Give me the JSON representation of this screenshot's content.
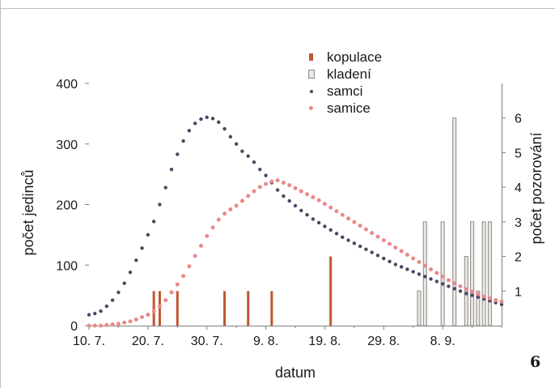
{
  "figure": {
    "number": "6"
  },
  "colors": {
    "frame": "#bfbfbf",
    "axis": "#7f7f7f",
    "text": "#1a1a1a",
    "kopulace": "#c0562e",
    "kladeni_fill": "#ebe8e4",
    "kladeni_stroke": "#8e8a86",
    "samci": "#4a4863",
    "samice": "#ea8a8a"
  },
  "legend": {
    "kopulace": "kopulace",
    "kladeni": "kladení",
    "samci": "samci",
    "samice": "samice"
  },
  "chart_data": {
    "type": "line",
    "xlabel": "datum",
    "ylabel": "počet jedinců",
    "y2label": "počet pozorování",
    "x_tick_labels": [
      "10. 7.",
      "20. 7.",
      "30. 7.",
      "9. 8.",
      "19. 8.",
      "29. 8.",
      "8. 9."
    ],
    "x_tick_days": [
      0,
      10,
      20,
      30,
      40,
      50,
      60
    ],
    "xlim": [
      0,
      70
    ],
    "ylim": [
      0,
      400
    ],
    "y_ticks": [
      0,
      100,
      200,
      300,
      400
    ],
    "y2lim": [
      0,
      7
    ],
    "y2_ticks": [
      1,
      2,
      3,
      4,
      5,
      6
    ],
    "grid": false,
    "legend_position": "top-center",
    "series": [
      {
        "name": "samci",
        "axis": "left",
        "style": "dots",
        "x": [
          0,
          1,
          2,
          3,
          4,
          5,
          6,
          7,
          8,
          9,
          10,
          11,
          12,
          13,
          14,
          15,
          16,
          17,
          18,
          19,
          20,
          21,
          22,
          23,
          24,
          25,
          26,
          27,
          28,
          29,
          30,
          31,
          32,
          33,
          34,
          35,
          36,
          37,
          38,
          39,
          40,
          41,
          42,
          43,
          44,
          45,
          46,
          47,
          48,
          49,
          50,
          51,
          52,
          53,
          54,
          55,
          56,
          57,
          58,
          59,
          60,
          61,
          62,
          63,
          64,
          65,
          66,
          67,
          68,
          69,
          70
        ],
        "values": [
          18,
          20,
          24,
          32,
          42,
          55,
          70,
          88,
          108,
          128,
          150,
          172,
          200,
          228,
          258,
          283,
          305,
          322,
          334,
          341,
          344,
          342,
          336,
          325,
          312,
          300,
          288,
          280,
          270,
          258,
          248,
          236,
          224,
          214,
          206,
          198,
          190,
          183,
          176,
          170,
          164,
          158,
          152,
          146,
          141,
          136,
          131,
          126,
          121,
          116,
          111,
          106,
          101,
          97,
          93,
          89,
          85,
          81,
          77,
          73,
          69,
          65,
          61,
          57,
          53,
          50,
          47,
          44,
          41,
          38,
          35
        ]
      },
      {
        "name": "samice",
        "axis": "left",
        "style": "dots",
        "x": [
          0,
          1,
          2,
          3,
          4,
          5,
          6,
          7,
          8,
          9,
          10,
          11,
          12,
          13,
          14,
          15,
          16,
          17,
          18,
          19,
          20,
          21,
          22,
          23,
          24,
          25,
          26,
          27,
          28,
          29,
          30,
          31,
          32,
          33,
          34,
          35,
          36,
          37,
          38,
          39,
          40,
          41,
          42,
          43,
          44,
          45,
          46,
          47,
          48,
          49,
          50,
          51,
          52,
          53,
          54,
          55,
          56,
          57,
          58,
          59,
          60,
          61,
          62,
          63,
          64,
          65,
          66,
          67,
          68,
          69,
          70
        ],
        "values": [
          0,
          0,
          0,
          1,
          2,
          3,
          5,
          7,
          10,
          14,
          18,
          24,
          32,
          42,
          55,
          68,
          82,
          98,
          115,
          132,
          148,
          162,
          175,
          185,
          192,
          198,
          206,
          214,
          222,
          229,
          234,
          238,
          240,
          236,
          232,
          227,
          222,
          217,
          212,
          207,
          201,
          195,
          189,
          183,
          177,
          171,
          165,
          159,
          153,
          147,
          141,
          135,
          129,
          123,
          117,
          111,
          105,
          99,
          93,
          87,
          81,
          75,
          70,
          65,
          60,
          56,
          52,
          48,
          45,
          42,
          40
        ]
      },
      {
        "name": "kopulace",
        "axis": "right",
        "style": "bars",
        "x": [
          11,
          12,
          15,
          23,
          27,
          31,
          41
        ],
        "values": [
          1,
          1,
          1,
          1,
          1,
          1,
          2
        ]
      },
      {
        "name": "kladení",
        "axis": "right",
        "style": "bars",
        "x": [
          56,
          57,
          60,
          62,
          64,
          65,
          66,
          67,
          68
        ],
        "values": [
          1,
          3,
          3,
          6,
          2,
          3,
          1,
          3,
          3
        ]
      }
    ]
  }
}
